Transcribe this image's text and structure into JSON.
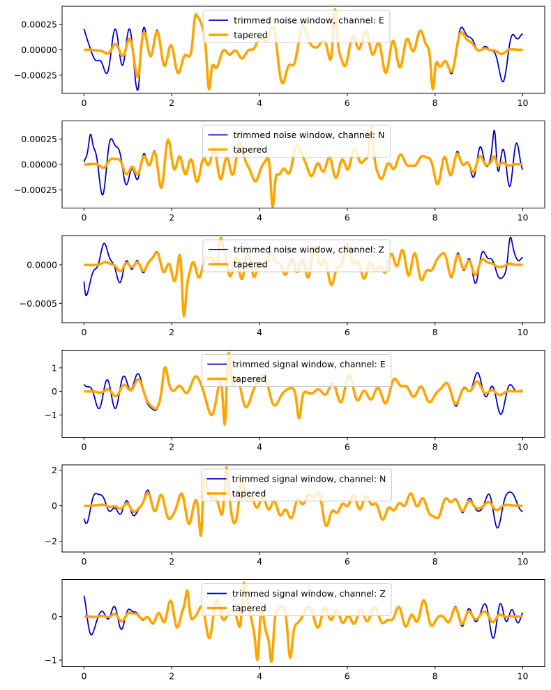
{
  "colors": {
    "raw": "#0000cc",
    "tapered": "#ffa500",
    "background": "#ffffff",
    "axes": "#000000"
  },
  "chart_data": [
    {
      "type": "line",
      "x_range": [
        0,
        10
      ],
      "xlim": [
        -0.5,
        10.5
      ],
      "xticks": [
        0,
        2,
        4,
        6,
        8,
        10
      ],
      "xtick_labels": [
        "0",
        "2",
        "4",
        "6",
        "8",
        "10"
      ],
      "ylim": [
        -0.00043,
        0.00043
      ],
      "yticks": [
        -0.00025,
        0,
        0.00025
      ],
      "ytick_labels": [
        "−0.00025",
        "0.00000",
        "0.00025"
      ],
      "legend_position": "top-center",
      "amplitude": 0.00033,
      "seed": 11,
      "peaks": [
        [
          1.22,
          -0.0004
        ],
        [
          2.85,
          -0.00039
        ],
        [
          5.72,
          0.0004
        ],
        [
          7.95,
          -0.00039
        ],
        [
          2.55,
          0.00035
        ]
      ],
      "series": [
        {
          "name": "trimmed noise window, channel: E",
          "role": "raw"
        },
        {
          "name": "tapered",
          "role": "tapered"
        }
      ]
    },
    {
      "type": "line",
      "x_range": [
        0,
        10
      ],
      "xlim": [
        -0.5,
        10.5
      ],
      "xticks": [
        0,
        2,
        4,
        6,
        8,
        10
      ],
      "xtick_labels": [
        "0",
        "2",
        "4",
        "6",
        "8",
        "10"
      ],
      "ylim": [
        -0.00043,
        0.00043
      ],
      "yticks": [
        -0.00025,
        0,
        0.00025
      ],
      "ytick_labels": [
        "−0.00025",
        "0.00000",
        "0.00025"
      ],
      "legend_position": "top-center",
      "amplitude": 0.0003,
      "seed": 23,
      "peaks": [
        [
          4.3,
          -0.00042
        ],
        [
          6.55,
          0.00037
        ],
        [
          9.35,
          0.00034
        ],
        [
          0.15,
          0.0003
        ]
      ],
      "series": [
        {
          "name": "trimmed noise window, channel: N",
          "role": "raw"
        },
        {
          "name": "tapered",
          "role": "tapered"
        }
      ]
    },
    {
      "type": "line",
      "x_range": [
        0,
        10
      ],
      "xlim": [
        -0.5,
        10.5
      ],
      "xticks": [
        0,
        2,
        4,
        6,
        8,
        10
      ],
      "xtick_labels": [
        "0",
        "2",
        "4",
        "6",
        "8",
        "10"
      ],
      "ylim": [
        -0.00075,
        0.00038
      ],
      "yticks": [
        -0.0005,
        0
      ],
      "ytick_labels": [
        "−0.0005",
        "0.0000"
      ],
      "legend_position": "top-center",
      "amplitude": 0.00028,
      "seed": 37,
      "peaks": [
        [
          2.28,
          -0.00067
        ],
        [
          3.12,
          0.00035
        ],
        [
          9.72,
          0.00036
        ],
        [
          0.05,
          -0.0004
        ]
      ],
      "series": [
        {
          "name": "trimmed noise window, channel: Z",
          "role": "raw"
        },
        {
          "name": "tapered",
          "role": "tapered"
        }
      ]
    },
    {
      "type": "line",
      "x_range": [
        0,
        10
      ],
      "xlim": [
        -0.5,
        10.5
      ],
      "xticks": [
        0,
        2,
        4,
        6,
        8,
        10
      ],
      "xtick_labels": [
        "0",
        "2",
        "4",
        "6",
        "8",
        "10"
      ],
      "ylim": [
        -1.95,
        1.75
      ],
      "yticks": [
        -1,
        0,
        1
      ],
      "ytick_labels": [
        "−1",
        "0",
        "1"
      ],
      "legend_position": "top-center",
      "amplitude": 1.0,
      "seed": 53,
      "peaks": [
        [
          3.22,
          -1.8
        ],
        [
          3.3,
          1.65
        ],
        [
          4.9,
          -1.15
        ],
        [
          1.85,
          1.05
        ]
      ],
      "series": [
        {
          "name": "trimmed signal window, channel: E",
          "role": "raw"
        },
        {
          "name": "tapered",
          "role": "tapered"
        }
      ]
    },
    {
      "type": "line",
      "x_range": [
        0,
        10
      ],
      "xlim": [
        -0.5,
        10.5
      ],
      "xticks": [
        0,
        2,
        4,
        6,
        8,
        10
      ],
      "xtick_labels": [
        "0",
        "2",
        "4",
        "6",
        "8",
        "10"
      ],
      "ylim": [
        -2.6,
        2.3
      ],
      "yticks": [
        -2,
        0,
        2
      ],
      "ytick_labels": [
        "−2",
        "0",
        "2"
      ],
      "legend_position": "top-center",
      "amplitude": 1.25,
      "seed": 71,
      "peaks": [
        [
          2.68,
          -2.35
        ],
        [
          3.25,
          2.15
        ],
        [
          2.75,
          1.7
        ],
        [
          3.6,
          1.4
        ]
      ],
      "series": [
        {
          "name": "trimmed signal window, channel: N",
          "role": "raw"
        },
        {
          "name": "tapered",
          "role": "tapered"
        }
      ]
    },
    {
      "type": "line",
      "x_range": [
        0,
        10
      ],
      "xlim": [
        -0.5,
        10.5
      ],
      "xticks": [
        0,
        2,
        4,
        6,
        8,
        10
      ],
      "xtick_labels": [
        "0",
        "2",
        "4",
        "6",
        "8",
        "10"
      ],
      "ylim": [
        -1.15,
        0.85
      ],
      "yticks": [
        -1,
        0
      ],
      "ytick_labels": [
        "−1",
        "0"
      ],
      "legend_position": "top-center",
      "amplitude": 0.5,
      "seed": 89,
      "peaks": [
        [
          3.65,
          0.78
        ],
        [
          4.27,
          -1.05
        ],
        [
          4.7,
          -0.95
        ],
        [
          3.95,
          -1.0
        ],
        [
          2.35,
          0.6
        ]
      ],
      "series": [
        {
          "name": "trimmed signal window, channel: Z",
          "role": "raw"
        },
        {
          "name": "tapered",
          "role": "tapered"
        }
      ]
    }
  ]
}
